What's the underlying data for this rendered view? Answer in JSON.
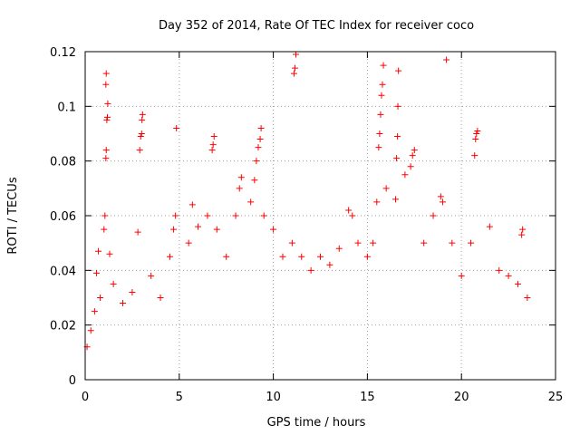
{
  "chart_data": {
    "type": "scatter",
    "title": "Day 352 of 2014, Rate Of TEC Index for receiver coco",
    "xlabel": "GPS time / hours",
    "ylabel": "ROTI / TECUs",
    "xlim": [
      0,
      25
    ],
    "ylim": [
      0,
      0.12
    ],
    "x_ticks": [
      0,
      5,
      10,
      15,
      20,
      25
    ],
    "x_tick_labels": [
      "0",
      "5",
      "10",
      "15",
      "20",
      "25"
    ],
    "y_ticks": [
      0,
      0.02,
      0.04,
      0.06,
      0.08,
      0.1,
      0.12
    ],
    "y_tick_labels": [
      "0",
      "0.02",
      "0.04",
      "0.06",
      "0.08",
      "0.1",
      "0.12"
    ],
    "grid": true,
    "marker": "+",
    "color": "#ff0000",
    "series": [
      {
        "name": "ROTI",
        "points": [
          [
            0.1,
            0.012
          ],
          [
            0.3,
            0.018
          ],
          [
            0.5,
            0.025
          ],
          [
            0.6,
            0.039
          ],
          [
            0.7,
            0.047
          ],
          [
            0.8,
            0.03
          ],
          [
            1.0,
            0.055
          ],
          [
            1.05,
            0.06
          ],
          [
            1.1,
            0.081
          ],
          [
            1.12,
            0.084
          ],
          [
            1.15,
            0.095
          ],
          [
            1.18,
            0.096
          ],
          [
            1.2,
            0.101
          ],
          [
            1.1,
            0.108
          ],
          [
            1.12,
            0.112
          ],
          [
            1.3,
            0.046
          ],
          [
            1.5,
            0.035
          ],
          [
            2.0,
            0.028
          ],
          [
            2.5,
            0.032
          ],
          [
            2.8,
            0.054
          ],
          [
            2.9,
            0.084
          ],
          [
            2.95,
            0.089
          ],
          [
            3.0,
            0.09
          ],
          [
            3.02,
            0.095
          ],
          [
            3.05,
            0.097
          ],
          [
            3.5,
            0.038
          ],
          [
            4.0,
            0.03
          ],
          [
            4.5,
            0.045
          ],
          [
            4.7,
            0.055
          ],
          [
            4.8,
            0.06
          ],
          [
            4.85,
            0.092
          ],
          [
            5.5,
            0.05
          ],
          [
            5.7,
            0.064
          ],
          [
            6.0,
            0.056
          ],
          [
            6.5,
            0.06
          ],
          [
            6.75,
            0.084
          ],
          [
            6.8,
            0.086
          ],
          [
            6.85,
            0.089
          ],
          [
            7.0,
            0.055
          ],
          [
            7.5,
            0.045
          ],
          [
            8.0,
            0.06
          ],
          [
            8.2,
            0.07
          ],
          [
            8.3,
            0.074
          ],
          [
            8.8,
            0.065
          ],
          [
            9.0,
            0.073
          ],
          [
            9.1,
            0.08
          ],
          [
            9.2,
            0.085
          ],
          [
            9.3,
            0.088
          ],
          [
            9.35,
            0.092
          ],
          [
            9.5,
            0.06
          ],
          [
            10.0,
            0.055
          ],
          [
            10.5,
            0.045
          ],
          [
            11.0,
            0.05
          ],
          [
            11.1,
            0.112
          ],
          [
            11.15,
            0.114
          ],
          [
            11.2,
            0.119
          ],
          [
            11.5,
            0.045
          ],
          [
            12.0,
            0.04
          ],
          [
            12.5,
            0.045
          ],
          [
            13.0,
            0.042
          ],
          [
            13.5,
            0.048
          ],
          [
            14.0,
            0.062
          ],
          [
            14.2,
            0.06
          ],
          [
            14.5,
            0.05
          ],
          [
            15.0,
            0.045
          ],
          [
            15.3,
            0.05
          ],
          [
            15.5,
            0.065
          ],
          [
            15.6,
            0.085
          ],
          [
            15.65,
            0.09
          ],
          [
            15.7,
            0.097
          ],
          [
            15.75,
            0.104
          ],
          [
            15.8,
            0.108
          ],
          [
            15.85,
            0.115
          ],
          [
            16.0,
            0.07
          ],
          [
            16.5,
            0.066
          ],
          [
            16.55,
            0.081
          ],
          [
            16.6,
            0.089
          ],
          [
            16.62,
            0.1
          ],
          [
            16.65,
            0.113
          ],
          [
            17.0,
            0.075
          ],
          [
            17.3,
            0.078
          ],
          [
            17.4,
            0.082
          ],
          [
            17.5,
            0.084
          ],
          [
            18.0,
            0.05
          ],
          [
            18.5,
            0.06
          ],
          [
            18.9,
            0.067
          ],
          [
            19.0,
            0.065
          ],
          [
            19.2,
            0.117
          ],
          [
            19.5,
            0.05
          ],
          [
            20.0,
            0.038
          ],
          [
            20.5,
            0.05
          ],
          [
            20.7,
            0.082
          ],
          [
            20.75,
            0.088
          ],
          [
            20.8,
            0.09
          ],
          [
            20.85,
            0.091
          ],
          [
            21.5,
            0.056
          ],
          [
            22.0,
            0.04
          ],
          [
            22.5,
            0.038
          ],
          [
            23.0,
            0.035
          ],
          [
            23.2,
            0.053
          ],
          [
            23.25,
            0.055
          ],
          [
            23.5,
            0.03
          ]
        ]
      }
    ]
  }
}
